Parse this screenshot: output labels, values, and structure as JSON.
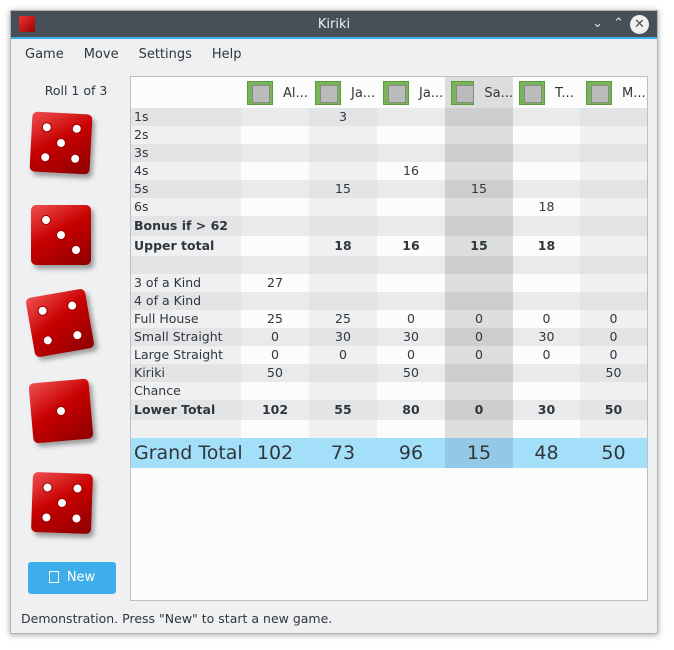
{
  "window": {
    "title": "Kiriki"
  },
  "menu": [
    "Game",
    "Move",
    "Settings",
    "Help"
  ],
  "roll_label": "Roll 1 of 3",
  "dice": [
    5,
    3,
    4,
    1,
    5
  ],
  "new_button": "New",
  "status": "Demonstration. Press \"New\" to start a new game.",
  "players": [
    "Al...",
    "Ja...",
    "Ja...",
    "Sa...",
    "T...",
    "M..."
  ],
  "current_player_index": 3,
  "rows": [
    {
      "label": "1s",
      "values": [
        "",
        "3",
        "",
        "",
        "",
        ""
      ]
    },
    {
      "label": "2s",
      "values": [
        "",
        "",
        "",
        "",
        "",
        ""
      ]
    },
    {
      "label": "3s",
      "values": [
        "",
        "",
        "",
        "",
        "",
        ""
      ]
    },
    {
      "label": "4s",
      "values": [
        "",
        "",
        "16",
        "",
        "",
        ""
      ]
    },
    {
      "label": "5s",
      "values": [
        "",
        "15",
        "",
        "15",
        "",
        ""
      ]
    },
    {
      "label": "6s",
      "values": [
        "",
        "",
        "",
        "",
        "18",
        ""
      ]
    },
    {
      "label": "Bonus if > 62",
      "values": [
        "",
        "",
        "",
        "",
        "",
        ""
      ],
      "bold": true
    },
    {
      "label": "Upper total",
      "values": [
        "",
        "18",
        "16",
        "15",
        "18",
        ""
      ],
      "bold": true
    },
    {
      "label": "",
      "values": [
        "",
        "",
        "",
        "",
        "",
        ""
      ]
    },
    {
      "label": "3 of a Kind",
      "values": [
        "27",
        "",
        "",
        "",
        "",
        ""
      ]
    },
    {
      "label": "4 of a Kind",
      "values": [
        "",
        "",
        "",
        "",
        "",
        ""
      ]
    },
    {
      "label": "Full House",
      "values": [
        "25",
        "25",
        "0",
        "0",
        "0",
        "0"
      ]
    },
    {
      "label": "Small Straight",
      "values": [
        "0",
        "30",
        "30",
        "0",
        "30",
        "0"
      ]
    },
    {
      "label": "Large Straight",
      "values": [
        "0",
        "0",
        "0",
        "0",
        "0",
        "0"
      ]
    },
    {
      "label": "Kiriki",
      "values": [
        "50",
        "",
        "50",
        "",
        "",
        "50"
      ]
    },
    {
      "label": "Chance",
      "values": [
        "",
        "",
        "",
        "",
        "",
        ""
      ]
    },
    {
      "label": "Lower Total",
      "values": [
        "102",
        "55",
        "80",
        "0",
        "30",
        "50"
      ],
      "bold": true
    },
    {
      "label": "",
      "values": [
        "",
        "",
        "",
        "",
        "",
        ""
      ]
    }
  ],
  "grand_total": {
    "label": "Grand Total",
    "values": [
      "102",
      "73",
      "96",
      "15",
      "48",
      "50"
    ]
  },
  "colors": {
    "accent": "#3daee9",
    "grand_total_bg": "#a3dff9",
    "titlebar": "#475057"
  }
}
